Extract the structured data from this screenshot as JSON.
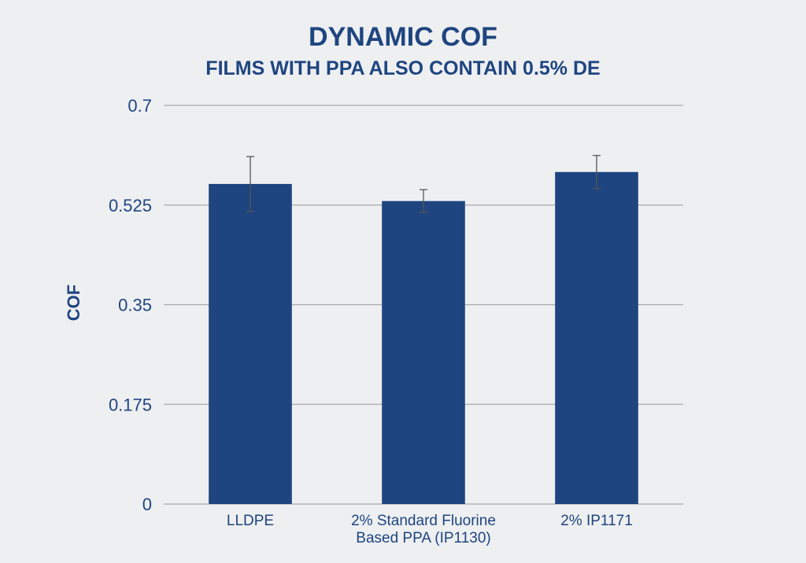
{
  "chart_data": {
    "type": "bar",
    "title": "DYNAMIC COF",
    "subtitle": "FILMS WITH PPA ALSO CONTAIN 0.5% DE",
    "xlabel": "",
    "ylabel": "COF",
    "ylim": [
      0,
      0.7
    ],
    "yticks": [
      "0",
      "0.175",
      "0.35",
      "0.525",
      "0.7"
    ],
    "categories": [
      [
        "LLDPE"
      ],
      [
        "2% Standard Fluorine",
        "Based PPA (IP1130)"
      ],
      [
        "2% IP1171"
      ]
    ],
    "values": [
      0.562,
      0.532,
      0.583
    ],
    "error": [
      0.048,
      0.02,
      0.029
    ],
    "grid": true,
    "legend": "none"
  },
  "colors": {
    "bar": "#1e4580",
    "text": "#1e4580",
    "grid": "#a9a9a9",
    "error_bar": "#555555",
    "background": "#eeeff1"
  }
}
